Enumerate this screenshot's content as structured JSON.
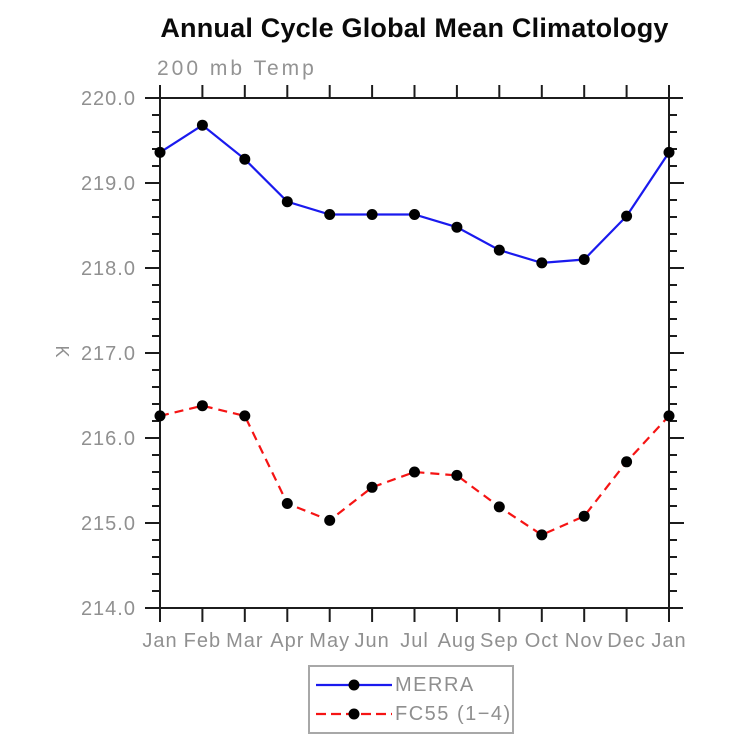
{
  "chart_data": {
    "type": "line",
    "title": "Annual Cycle Global Mean Climatology",
    "subtitle": "200 mb Temp",
    "ylabel": "K",
    "categories": [
      "Jan",
      "Feb",
      "Mar",
      "Apr",
      "May",
      "Jun",
      "Jul",
      "Aug",
      "Sep",
      "Oct",
      "Nov",
      "Dec",
      "Jan"
    ],
    "series": [
      {
        "name": "MERRA",
        "color": "#1a1aee",
        "line_style": "solid",
        "marker": "filled-circle",
        "marker_color": "#000000",
        "values": [
          219.36,
          219.68,
          219.28,
          218.78,
          218.63,
          218.63,
          218.63,
          218.48,
          218.21,
          218.06,
          218.1,
          218.61,
          219.36
        ]
      },
      {
        "name": "FC55 (1−4)",
        "color": "#f51414",
        "line_style": "dashed",
        "marker": "filled-circle",
        "marker_color": "#000000",
        "values": [
          216.26,
          216.38,
          216.26,
          215.23,
          215.03,
          215.42,
          215.6,
          215.56,
          215.19,
          214.86,
          215.08,
          215.72,
          216.26
        ]
      }
    ],
    "ylim": [
      214.0,
      220.0
    ],
    "ytick_major": 1.0,
    "ytick_minor": 0.2,
    "ytick_labels": [
      "214.0",
      "215.0",
      "216.0",
      "217.0",
      "218.0",
      "219.0",
      "220.0"
    ],
    "grid": false,
    "legend_position": "bottom-center",
    "axis_color": "#1c1c1c",
    "label_color": "#909090"
  }
}
